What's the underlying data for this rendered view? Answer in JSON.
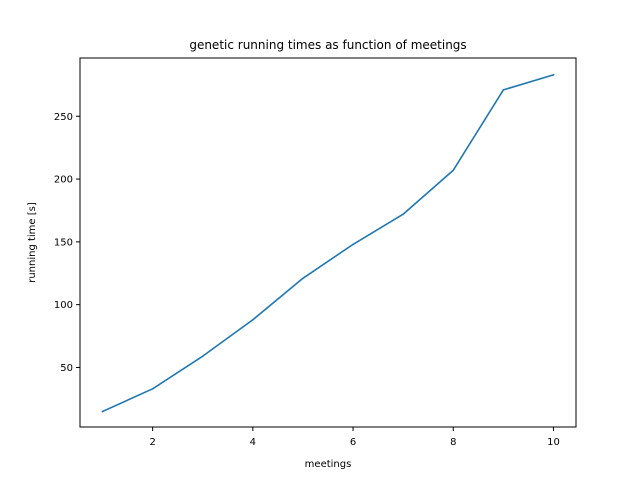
{
  "chart_data": {
    "type": "line",
    "title": "genetic running times as function of meetings",
    "xlabel": "meetings",
    "ylabel": "running time [s]",
    "x": [
      1,
      2,
      3,
      4,
      5,
      6,
      7,
      8,
      9,
      10
    ],
    "series": [
      {
        "values": [
          15,
          33,
          59,
          88,
          121,
          148,
          172,
          207,
          271,
          283
        ],
        "color": "#1f77b4"
      }
    ],
    "xlim": [
      0.55,
      10.45
    ],
    "ylim": [
      2.6,
      296.4
    ],
    "xticks": [
      2,
      4,
      6,
      8,
      10
    ],
    "yticks": [
      50,
      100,
      150,
      200,
      250
    ],
    "grid": false,
    "legend": "none"
  }
}
